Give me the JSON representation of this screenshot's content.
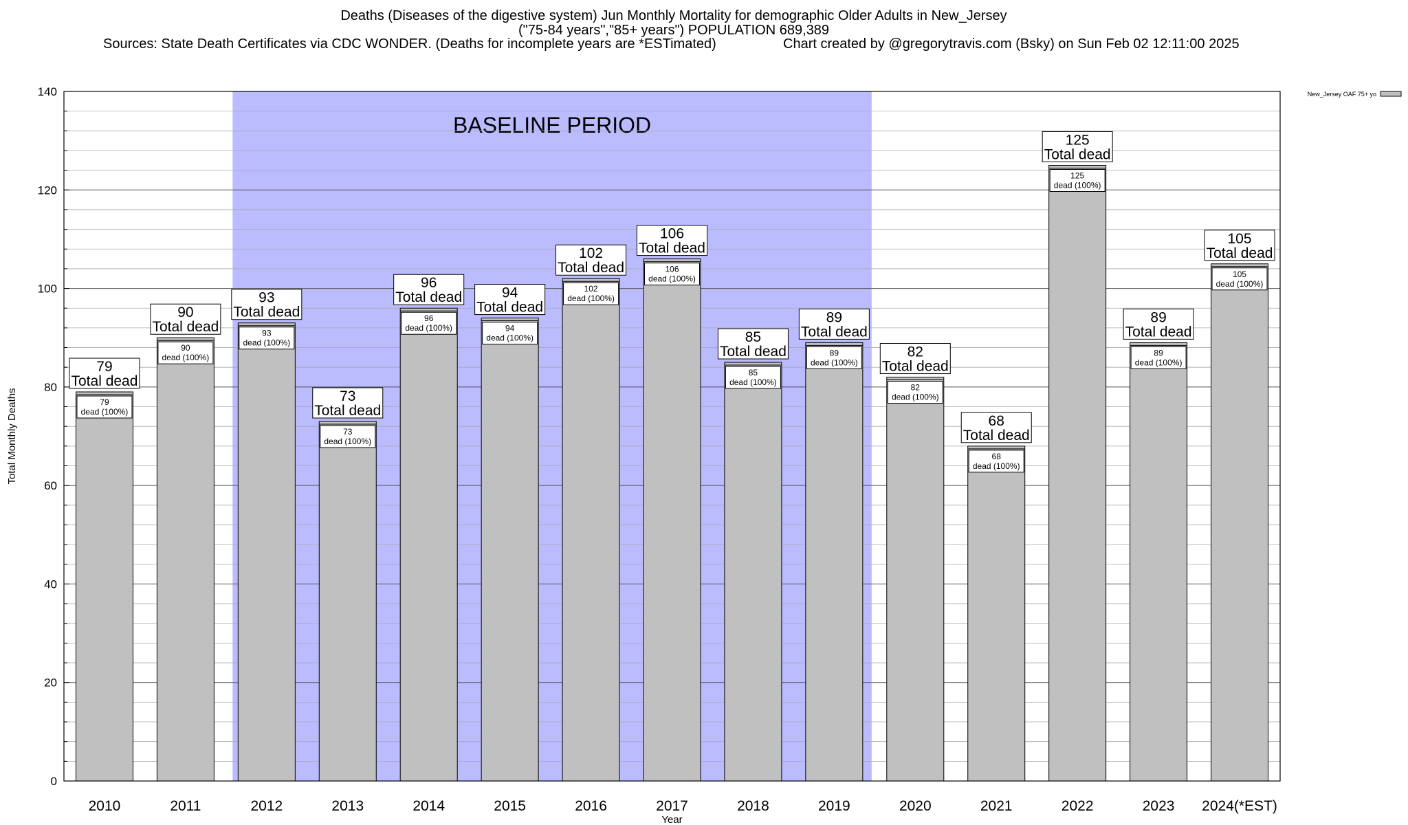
{
  "title_lines": [
    "Deaths (Diseases of the digestive system) Jun Monthly Mortality for demographic Older Adults in New_Jersey",
    "(\"75-84 years\",\"85+ years\") POPULATION 689,389",
    "Sources: State Death Certificates via CDC WONDER. (Deaths for incomplete years are *ESTimated)",
    "Chart created by @gregorytravis.com (Bsky) on Sun Feb 02 12:11:00 2025"
  ],
  "chart_data": {
    "type": "bar",
    "title": "Deaths (Diseases of the digestive system) Jun Monthly Mortality for demographic Older Adults in New_Jersey",
    "xlabel": "Year",
    "ylabel": "Total Monthly Deaths",
    "ylim": [
      0,
      140
    ],
    "yticks": [
      0,
      20,
      40,
      60,
      80,
      100,
      120,
      140
    ],
    "minor_grid_step": 4,
    "grid": true,
    "categories": [
      "2010",
      "2011",
      "2012",
      "2013",
      "2014",
      "2015",
      "2016",
      "2017",
      "2018",
      "2019",
      "2020",
      "2021",
      "2022",
      "2023",
      "2024(*EST)"
    ],
    "series": [
      {
        "name": "New_Jersey OAF 75+ yo",
        "color": "#c0c0c0",
        "values": [
          79,
          90,
          93,
          73,
          96,
          94,
          102,
          106,
          85,
          89,
          82,
          68,
          125,
          89,
          105
        ]
      }
    ],
    "total_label_text": "Total dead",
    "inner_label_suffix": "dead (100%)",
    "baseline": {
      "label": "BASELINE PERIOD",
      "start": "2012",
      "end": "2019",
      "color": "#bbbbff"
    },
    "legend": {
      "position": "top-right",
      "label": "New_Jersey OAF 75+ yo"
    }
  }
}
